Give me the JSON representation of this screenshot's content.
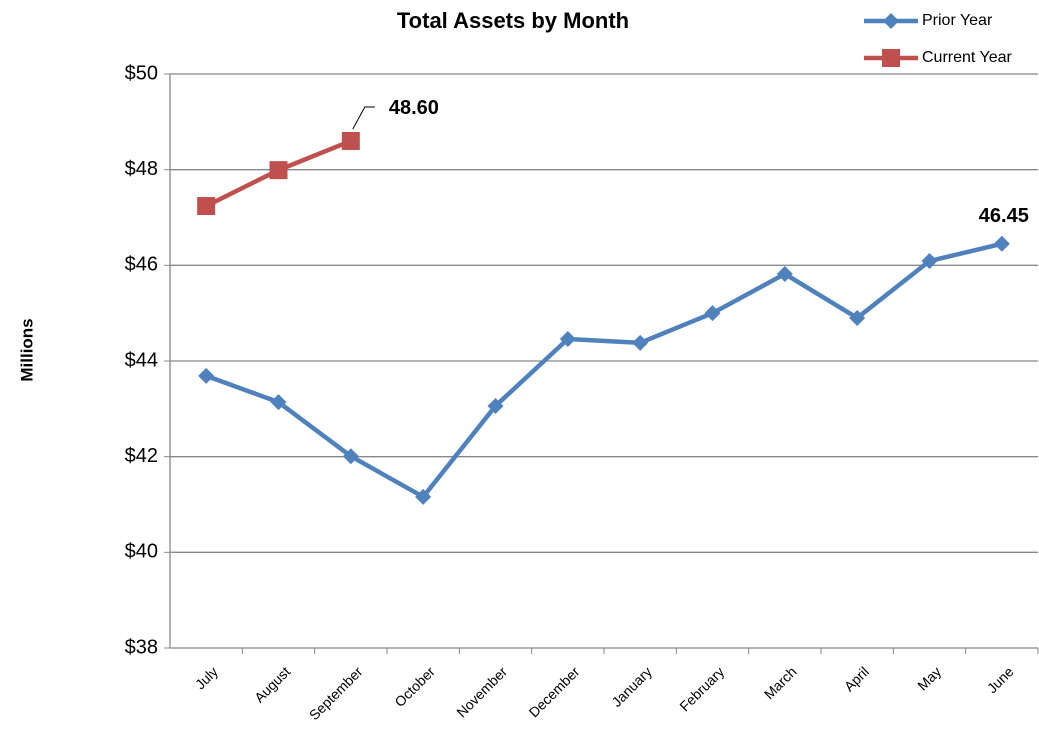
{
  "chart_data": {
    "type": "line",
    "title": "Total Assets by Month",
    "y_label": "Millions",
    "categories": [
      "July",
      "August",
      "September",
      "October",
      "November",
      "December",
      "January",
      "February",
      "March",
      "April",
      "May",
      "June"
    ],
    "series": [
      {
        "name": "Prior Year",
        "color": "#4f81bd",
        "marker": "diamond",
        "values": [
          43.69,
          43.14,
          42.01,
          41.16,
          43.06,
          44.46,
          44.38,
          45.0,
          45.82,
          44.9,
          46.09,
          46.45
        ],
        "value_labels": [
          null,
          null,
          null,
          null,
          null,
          null,
          null,
          null,
          null,
          null,
          null,
          "46.45"
        ]
      },
      {
        "name": "Current Year",
        "color": "#c0504d",
        "marker": "square",
        "values": [
          47.24,
          47.99,
          48.6,
          null,
          null,
          null,
          null,
          null,
          null,
          null,
          null,
          null
        ],
        "value_labels": [
          null,
          null,
          "48.60",
          null,
          null,
          null,
          null,
          null,
          null,
          null,
          null,
          null
        ]
      }
    ],
    "ylim": [
      38,
      50
    ],
    "yticks": [
      {
        "value": 38,
        "label": "$38"
      },
      {
        "value": 40,
        "label": "$40"
      },
      {
        "value": 42,
        "label": "$42"
      },
      {
        "value": 44,
        "label": "$44"
      },
      {
        "value": 46,
        "label": "$46"
      },
      {
        "value": 48,
        "label": "$48"
      },
      {
        "value": 50,
        "label": "$50"
      }
    ],
    "grid": true,
    "legend": "top-right"
  }
}
